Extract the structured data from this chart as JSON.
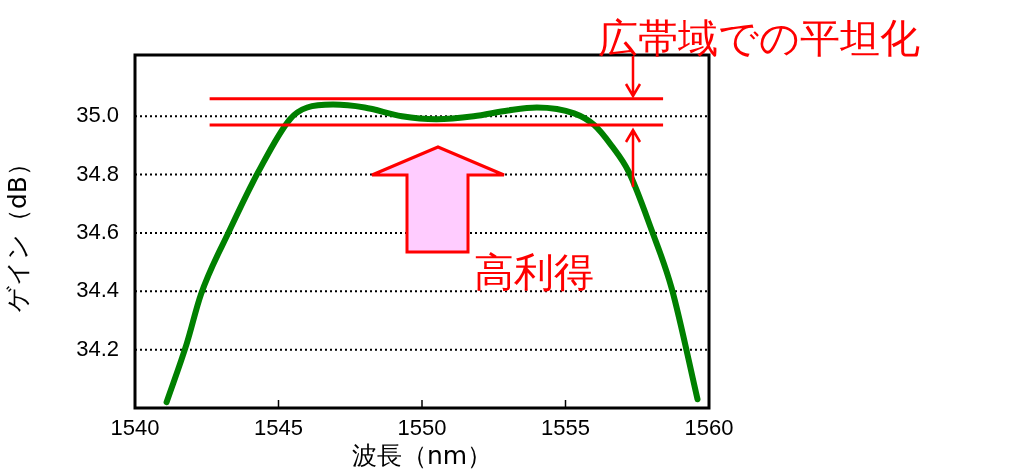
{
  "chart_data": {
    "type": "line",
    "xlabel": "波長（nm）",
    "ylabel": "ゲイン（dB）",
    "annotations": [
      "広帯域での平坦化",
      "高利得"
    ],
    "series": [
      {
        "color": "#008000",
        "x": [
          1541.1,
          1541.8,
          1542.3,
          1543.3,
          1544.3,
          1545.4,
          1546.0,
          1546.9,
          1548.0,
          1549.3,
          1550.5,
          1551.8,
          1553.0,
          1554.0,
          1555.3,
          1556.0,
          1556.6,
          1557.2,
          1558.0,
          1558.7,
          1559.6
        ],
        "values": [
          34.02,
          34.22,
          34.39,
          34.61,
          34.81,
          34.99,
          35.03,
          35.04,
          35.03,
          35.0,
          34.99,
          35.0,
          35.02,
          35.03,
          35.01,
          34.97,
          34.9,
          34.81,
          34.61,
          34.41,
          34.03
        ]
      }
    ],
    "ref_lines": [
      {
        "axis": "y",
        "value": 35.06,
        "color": "#ff0000"
      },
      {
        "axis": "y",
        "value": 34.97,
        "color": "#ff0000"
      }
    ],
    "xlim": [
      1540,
      1560
    ],
    "xticks": [
      1540,
      1545,
      1550,
      1555,
      1560
    ],
    "ylim": [
      34.0,
      35.21
    ],
    "yticks": [
      34.2,
      34.4,
      34.6,
      34.8,
      {
        "value": 35.0,
        "label": "35.0"
      }
    ],
    "grid": "y",
    "legend": false,
    "marker": "none",
    "line_style": "solid"
  }
}
